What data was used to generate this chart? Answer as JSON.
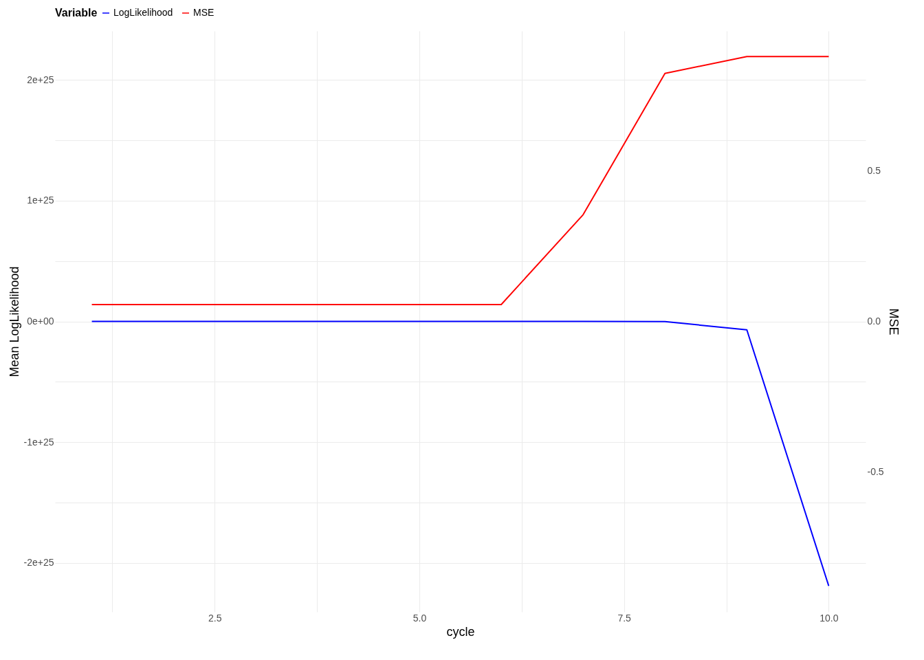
{
  "chart_data": {
    "type": "line",
    "xlabel": "cycle",
    "ylabel": "Mean LogLikelihood",
    "y2label": "MSE",
    "legend_title": "Variable",
    "legend": "top",
    "grid": true,
    "x": [
      1,
      2,
      3,
      4,
      5,
      6,
      7,
      8,
      9,
      10
    ],
    "series": [
      {
        "name": "LogLikelihood",
        "color": "#0000ff",
        "values": [
          0,
          0,
          0,
          0,
          0,
          0,
          0,
          -1e+22,
          -7e+23,
          -2.19e+25
        ]
      },
      {
        "name": "MSE",
        "color": "#ff0000",
        "axis": "y2",
        "values": [
          0.056,
          0.056,
          0.056,
          0.056,
          0.056,
          0.056,
          0.354,
          0.823,
          0.879,
          0.879
        ]
      }
    ],
    "xlim": [
      0.55,
      10.45
    ],
    "xticks": [
      {
        "value": 1.25,
        "label": null
      },
      2.5,
      {
        "value": 3.75,
        "label": null
      },
      {
        "value": 5,
        "label": "5.0"
      },
      {
        "value": 6.25,
        "label": null
      },
      7.5,
      {
        "value": 8.75,
        "label": null
      },
      {
        "value": 10,
        "label": "10.0"
      }
    ],
    "ylim": [
      -2.405e+25,
      2.405e+25
    ],
    "yticks": [
      {
        "value": -2e+25,
        "label": "-2e+25"
      },
      {
        "value": -1.5e+25,
        "label": null
      },
      {
        "value": -1e+25,
        "label": "-1e+25"
      },
      {
        "value": -5e+24,
        "label": null
      },
      {
        "value": 0,
        "label": "0e+00"
      },
      {
        "value": 5e+24,
        "label": null
      },
      {
        "value": 1e+25,
        "label": "1e+25"
      },
      {
        "value": 1.5e+25,
        "label": null
      },
      {
        "value": 2e+25,
        "label": "2e+25"
      }
    ],
    "y2lim": [
      -0.964,
      0.964
    ],
    "y2ticks": [
      -0.5,
      {
        "value": 0,
        "label": "0.0"
      },
      0.5
    ]
  }
}
